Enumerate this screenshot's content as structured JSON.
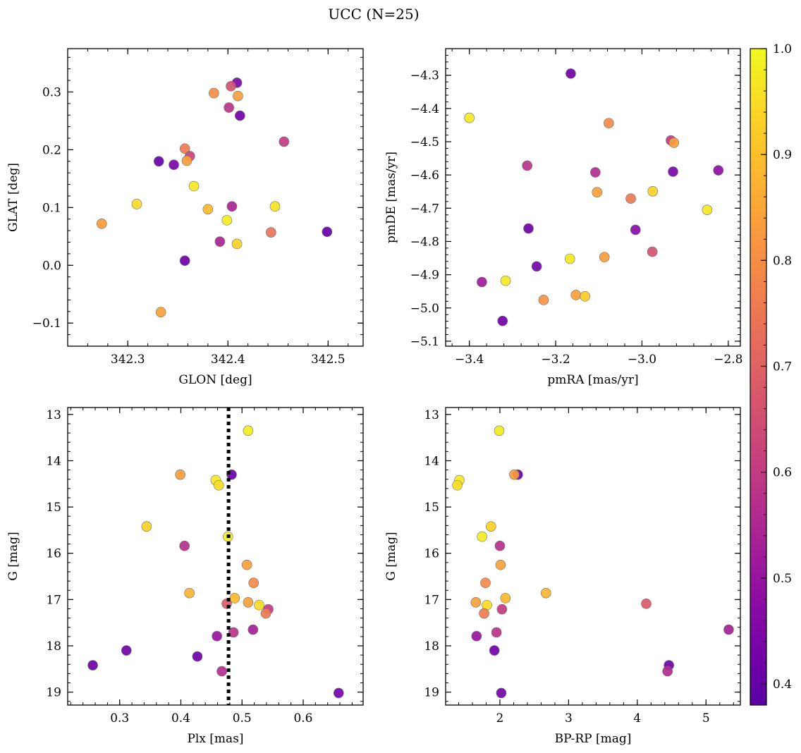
{
  "figure": {
    "title": "UCC (N=25)"
  },
  "colorbar": {
    "min": 0.38,
    "max": 1.0,
    "ticks": [
      0.4,
      0.5,
      0.6,
      0.7,
      0.8,
      0.9,
      1.0
    ],
    "tick_labels": [
      "0.4",
      "0.5",
      "0.6",
      "0.7",
      "0.8",
      "0.9",
      "1.0"
    ],
    "colormap": "plasma"
  },
  "chart_data": [
    {
      "type": "scatter",
      "id": "glon-glat",
      "xlabel": "GLON [deg]",
      "ylabel": "GLAT [deg]",
      "xlim": [
        342.24,
        342.535
      ],
      "ylim": [
        -0.14,
        0.375
      ],
      "y_inverted": false,
      "xticks": [
        342.3,
        342.4,
        342.5
      ],
      "xtick_labels": [
        "342.3",
        "342.4",
        "342.5"
      ],
      "yticks": [
        -0.1,
        0.0,
        0.1,
        0.2,
        0.3
      ],
      "ytick_labels": [
        "−0.1",
        "0.0",
        "0.1",
        "0.2",
        "0.3"
      ],
      "xminor": 0.02,
      "yminor": 0.02,
      "points": [
        {
          "x": 342.409,
          "y": 0.316,
          "c": 0.45
        },
        {
          "x": 342.386,
          "y": 0.298,
          "c": 0.8
        },
        {
          "x": 342.403,
          "y": 0.31,
          "c": 0.66
        },
        {
          "x": 342.41,
          "y": 0.293,
          "c": 0.84
        },
        {
          "x": 342.401,
          "y": 0.273,
          "c": 0.58
        },
        {
          "x": 342.412,
          "y": 0.259,
          "c": 0.42
        },
        {
          "x": 342.456,
          "y": 0.214,
          "c": 0.6
        },
        {
          "x": 342.357,
          "y": 0.202,
          "c": 0.76
        },
        {
          "x": 342.362,
          "y": 0.189,
          "c": 0.62
        },
        {
          "x": 342.359,
          "y": 0.181,
          "c": 0.84
        },
        {
          "x": 342.331,
          "y": 0.18,
          "c": 0.41
        },
        {
          "x": 342.346,
          "y": 0.174,
          "c": 0.44
        },
        {
          "x": 342.366,
          "y": 0.137,
          "c": 0.97
        },
        {
          "x": 342.309,
          "y": 0.106,
          "c": 0.95
        },
        {
          "x": 342.404,
          "y": 0.102,
          "c": 0.54
        },
        {
          "x": 342.447,
          "y": 0.102,
          "c": 0.96
        },
        {
          "x": 342.38,
          "y": 0.097,
          "c": 0.89
        },
        {
          "x": 342.399,
          "y": 0.078,
          "c": 0.98
        },
        {
          "x": 342.274,
          "y": 0.072,
          "c": 0.83
        },
        {
          "x": 342.443,
          "y": 0.057,
          "c": 0.74
        },
        {
          "x": 342.499,
          "y": 0.058,
          "c": 0.41
        },
        {
          "x": 342.392,
          "y": 0.041,
          "c": 0.54
        },
        {
          "x": 342.409,
          "y": 0.037,
          "c": 0.93
        },
        {
          "x": 342.357,
          "y": 0.008,
          "c": 0.42
        },
        {
          "x": 342.333,
          "y": -0.081,
          "c": 0.84
        }
      ]
    },
    {
      "type": "scatter",
      "id": "pmra-pmde",
      "xlabel": "pmRA [mas/yr]",
      "ylabel": "pmDE [mas/yr]",
      "xlim": [
        -3.455,
        -2.772
      ],
      "ylim": [
        -5.115,
        -4.22
      ],
      "y_inverted": false,
      "xticks": [
        -3.4,
        -3.2,
        -3.0,
        -2.8
      ],
      "xtick_labels": [
        "−3.4",
        "−3.2",
        "−3.0",
        "−2.8"
      ],
      "yticks": [
        -5.1,
        -5.0,
        -4.9,
        -4.8,
        -4.7,
        -4.6,
        -4.5,
        -4.4,
        -4.3
      ],
      "ytick_labels": [
        "−5.1",
        "−5.0",
        "−4.9",
        "−4.8",
        "−4.7",
        "−4.6",
        "−4.5",
        "−4.4",
        "−4.3"
      ],
      "xminor": 0.04,
      "yminor": 0.02,
      "points": [
        {
          "x": -3.165,
          "y": -4.295,
          "c": 0.42
        },
        {
          "x": -3.4,
          "y": -4.428,
          "c": 0.97
        },
        {
          "x": -3.077,
          "y": -4.444,
          "c": 0.79
        },
        {
          "x": -2.933,
          "y": -4.496,
          "c": 0.6
        },
        {
          "x": -2.926,
          "y": -4.503,
          "c": 0.84
        },
        {
          "x": -3.266,
          "y": -4.572,
          "c": 0.58
        },
        {
          "x": -3.108,
          "y": -4.592,
          "c": 0.56
        },
        {
          "x": -2.928,
          "y": -4.59,
          "c": 0.44
        },
        {
          "x": -2.823,
          "y": -4.586,
          "c": 0.48
        },
        {
          "x": -3.104,
          "y": -4.652,
          "c": 0.84
        },
        {
          "x": -2.975,
          "y": -4.649,
          "c": 0.93
        },
        {
          "x": -3.026,
          "y": -4.671,
          "c": 0.75
        },
        {
          "x": -2.849,
          "y": -4.705,
          "c": 0.97
        },
        {
          "x": -3.263,
          "y": -4.761,
          "c": 0.42
        },
        {
          "x": -3.015,
          "y": -4.765,
          "c": 0.47
        },
        {
          "x": -2.976,
          "y": -4.831,
          "c": 0.66
        },
        {
          "x": -3.167,
          "y": -4.852,
          "c": 0.97
        },
        {
          "x": -3.087,
          "y": -4.847,
          "c": 0.83
        },
        {
          "x": -3.244,
          "y": -4.875,
          "c": 0.43
        },
        {
          "x": -3.371,
          "y": -4.922,
          "c": 0.52
        },
        {
          "x": -3.316,
          "y": -4.918,
          "c": 0.97
        },
        {
          "x": -3.153,
          "y": -4.961,
          "c": 0.84
        },
        {
          "x": -3.132,
          "y": -4.965,
          "c": 0.92
        },
        {
          "x": -3.228,
          "y": -4.976,
          "c": 0.81
        },
        {
          "x": -3.323,
          "y": -5.039,
          "c": 0.42
        }
      ]
    },
    {
      "type": "scatter",
      "id": "plx-g",
      "xlabel": "Plx [mas]",
      "ylabel": "G [mag]",
      "xlim": [
        0.215,
        0.698
      ],
      "ylim": [
        12.85,
        19.28
      ],
      "y_inverted": true,
      "xticks": [
        0.3,
        0.4,
        0.5,
        0.6
      ],
      "xtick_labels": [
        "0.3",
        "0.4",
        "0.5",
        "0.6"
      ],
      "yticks": [
        13,
        14,
        15,
        16,
        17,
        18,
        19
      ],
      "ytick_labels": [
        "13",
        "14",
        "15",
        "16",
        "17",
        "18",
        "19"
      ],
      "xminor": 0.02,
      "yminor": 0.2,
      "vline": 0.478,
      "points": [
        {
          "x": 0.51,
          "y": 13.35,
          "c": 0.98
        },
        {
          "x": 0.399,
          "y": 14.3,
          "c": 0.83
        },
        {
          "x": 0.483,
          "y": 14.3,
          "c": 0.41
        },
        {
          "x": 0.457,
          "y": 14.42,
          "c": 0.97
        },
        {
          "x": 0.462,
          "y": 14.53,
          "c": 0.95
        },
        {
          "x": 0.344,
          "y": 15.42,
          "c": 0.93
        },
        {
          "x": 0.477,
          "y": 15.64,
          "c": 0.98
        },
        {
          "x": 0.406,
          "y": 15.84,
          "c": 0.57
        },
        {
          "x": 0.508,
          "y": 16.25,
          "c": 0.84
        },
        {
          "x": 0.519,
          "y": 16.64,
          "c": 0.79
        },
        {
          "x": 0.414,
          "y": 16.86,
          "c": 0.88
        },
        {
          "x": 0.488,
          "y": 16.97,
          "c": 0.89
        },
        {
          "x": 0.475,
          "y": 17.09,
          "c": 0.68
        },
        {
          "x": 0.51,
          "y": 17.06,
          "c": 0.84
        },
        {
          "x": 0.528,
          "y": 17.12,
          "c": 0.95
        },
        {
          "x": 0.543,
          "y": 17.21,
          "c": 0.6
        },
        {
          "x": 0.539,
          "y": 17.3,
          "c": 0.76
        },
        {
          "x": 0.486,
          "y": 17.71,
          "c": 0.58
        },
        {
          "x": 0.518,
          "y": 17.65,
          "c": 0.53
        },
        {
          "x": 0.459,
          "y": 17.79,
          "c": 0.5
        },
        {
          "x": 0.311,
          "y": 18.1,
          "c": 0.42
        },
        {
          "x": 0.427,
          "y": 18.23,
          "c": 0.42
        },
        {
          "x": 0.256,
          "y": 18.42,
          "c": 0.42
        },
        {
          "x": 0.467,
          "y": 18.55,
          "c": 0.56
        },
        {
          "x": 0.658,
          "y": 19.02,
          "c": 0.43
        }
      ]
    },
    {
      "type": "scatter",
      "id": "bprp-g",
      "xlabel": "BP-RP [mag]",
      "ylabel": "G [mag]",
      "xlim": [
        1.21,
        5.5
      ],
      "ylim": [
        12.85,
        19.28
      ],
      "y_inverted": true,
      "xticks": [
        2,
        3,
        4,
        5
      ],
      "xtick_labels": [
        "2",
        "3",
        "4",
        "5"
      ],
      "yticks": [
        13,
        14,
        15,
        16,
        17,
        18,
        19
      ],
      "ytick_labels": [
        "13",
        "14",
        "15",
        "16",
        "17",
        "18",
        "19"
      ],
      "xminor": 0.2,
      "yminor": 0.2,
      "points": [
        {
          "x": 1.99,
          "y": 13.35,
          "c": 0.98
        },
        {
          "x": 2.26,
          "y": 14.3,
          "c": 0.41
        },
        {
          "x": 2.21,
          "y": 14.3,
          "c": 0.83
        },
        {
          "x": 1.41,
          "y": 14.42,
          "c": 0.97
        },
        {
          "x": 1.38,
          "y": 14.53,
          "c": 0.95
        },
        {
          "x": 1.87,
          "y": 15.42,
          "c": 0.93
        },
        {
          "x": 1.74,
          "y": 15.64,
          "c": 0.98
        },
        {
          "x": 2.0,
          "y": 15.84,
          "c": 0.57
        },
        {
          "x": 2.01,
          "y": 16.25,
          "c": 0.84
        },
        {
          "x": 1.79,
          "y": 16.64,
          "c": 0.79
        },
        {
          "x": 2.67,
          "y": 16.86,
          "c": 0.88
        },
        {
          "x": 2.08,
          "y": 16.97,
          "c": 0.89
        },
        {
          "x": 4.13,
          "y": 17.09,
          "c": 0.68
        },
        {
          "x": 1.65,
          "y": 17.06,
          "c": 0.84
        },
        {
          "x": 1.81,
          "y": 17.12,
          "c": 0.95
        },
        {
          "x": 2.03,
          "y": 17.21,
          "c": 0.6
        },
        {
          "x": 1.77,
          "y": 17.3,
          "c": 0.76
        },
        {
          "x": 1.95,
          "y": 17.71,
          "c": 0.58
        },
        {
          "x": 5.33,
          "y": 17.65,
          "c": 0.53
        },
        {
          "x": 1.66,
          "y": 17.79,
          "c": 0.5
        },
        {
          "x": 1.92,
          "y": 18.1,
          "c": 0.42
        },
        {
          "x": 4.46,
          "y": 18.42,
          "c": 0.42
        },
        {
          "x": 4.44,
          "y": 18.55,
          "c": 0.56
        },
        {
          "x": 2.02,
          "y": 19.02,
          "c": 0.43
        }
      ]
    }
  ]
}
